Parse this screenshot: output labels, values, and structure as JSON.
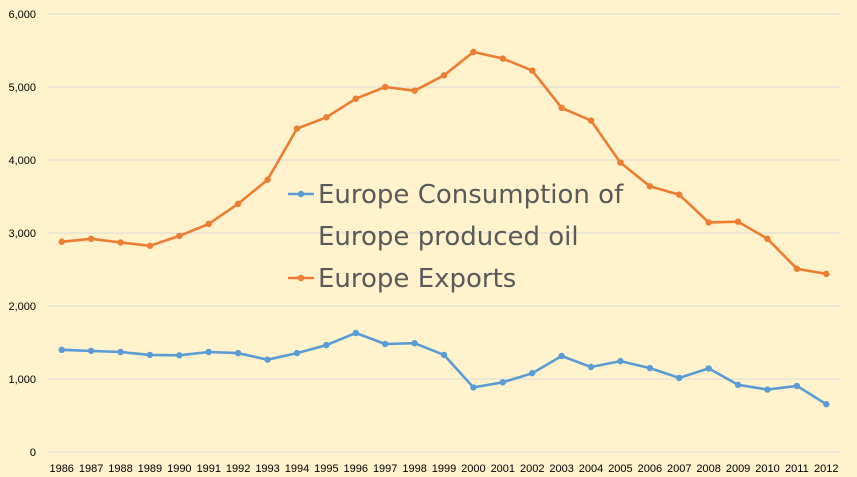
{
  "chart_data": {
    "type": "line",
    "title": "",
    "xlabel": "",
    "ylabel": "",
    "x": [
      "1986",
      "1987",
      "1988",
      "1989",
      "1990",
      "1991",
      "1992",
      "1993",
      "1994",
      "1995",
      "1996",
      "1997",
      "1998",
      "1999",
      "2000",
      "2001",
      "2002",
      "2003",
      "2004",
      "2005",
      "2006",
      "2007",
      "2008",
      "2009",
      "2010",
      "2011",
      "2012"
    ],
    "ylim": [
      0,
      6000
    ],
    "yticks": [
      0,
      1000,
      2000,
      3000,
      4000,
      5000,
      6000
    ],
    "ytick_labels": [
      "0",
      "1,000",
      "2,000",
      "3,000",
      "4,000",
      "5,000",
      "6,000"
    ],
    "grid": "horizontal",
    "legend_position": "center",
    "series": [
      {
        "name": "Europe Consumption of Europe produced oil",
        "legend_lines": [
          "Europe Consumption of",
          "Europe produced oil"
        ],
        "color": "#5B9BD5",
        "values": [
          1400,
          1385,
          1370,
          1330,
          1325,
          1370,
          1355,
          1265,
          1355,
          1465,
          1630,
          1480,
          1490,
          1330,
          885,
          955,
          1080,
          1315,
          1165,
          1245,
          1150,
          1015,
          1145,
          920,
          855,
          905,
          655
        ]
      },
      {
        "name": "Europe Exports",
        "legend_lines": [
          "Europe Exports"
        ],
        "color": "#ED7D31",
        "values": [
          2880,
          2920,
          2870,
          2825,
          2960,
          3125,
          3400,
          3730,
          4430,
          4585,
          4840,
          5000,
          4950,
          5160,
          5480,
          5390,
          5225,
          4715,
          4540,
          3965,
          3640,
          3525,
          3145,
          3155,
          2920,
          2510,
          2440
        ]
      }
    ]
  }
}
